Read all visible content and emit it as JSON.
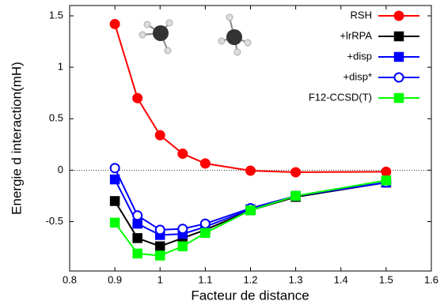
{
  "chart_data": {
    "type": "line",
    "x_label": "Facteur de distance",
    "y_label": "Energie d interaction(mH)",
    "xlim": [
      0.8,
      1.6
    ],
    "xticks": [
      0.8,
      0.9,
      1,
      1.1,
      1.2,
      1.3,
      1.4,
      1.5,
      1.6
    ],
    "ylim": [
      -0.98,
      1.6
    ],
    "yticks": [
      -0.5,
      0,
      0.5,
      1,
      1.5
    ],
    "zero_line": true,
    "legend": "top-right",
    "series": [
      {
        "name": "RSH",
        "color": "#ff0000",
        "marker": "circle",
        "filled": true,
        "x": [
          0.9,
          0.95,
          1.0,
          1.05,
          1.1,
          1.2,
          1.3,
          1.5
        ],
        "values": [
          1.42,
          0.7,
          0.34,
          0.16,
          0.065,
          -0.005,
          -0.02,
          -0.015
        ]
      },
      {
        "name": "+lrRPA",
        "color": "#000000",
        "marker": "square",
        "filled": true,
        "x": [
          0.9,
          0.95,
          1.0,
          1.05,
          1.1,
          1.2,
          1.3,
          1.5
        ],
        "values": [
          -0.3,
          -0.66,
          -0.74,
          -0.66,
          -0.58,
          -0.39,
          -0.26,
          -0.12
        ]
      },
      {
        "name": "+disp",
        "color": "#0000ff",
        "marker": "square",
        "filled": true,
        "x": [
          0.9,
          0.95,
          1.0,
          1.05,
          1.1,
          1.2,
          1.3,
          1.5
        ],
        "values": [
          -0.09,
          -0.52,
          -0.63,
          -0.62,
          -0.55,
          -0.38,
          -0.25,
          -0.12
        ]
      },
      {
        "name": "+disp*",
        "color": "#0000ff",
        "marker": "circle",
        "filled": false,
        "x": [
          0.9,
          0.95,
          1.0,
          1.05,
          1.1,
          1.2,
          1.3,
          1.5
        ],
        "values": [
          0.02,
          -0.44,
          -0.58,
          -0.57,
          -0.52,
          -0.37,
          -0.25,
          -0.12
        ]
      },
      {
        "name": "F12-CCSD(T)",
        "color": "#00ff00",
        "marker": "square",
        "filled": true,
        "x": [
          0.9,
          0.95,
          1.0,
          1.05,
          1.1,
          1.2,
          1.3,
          1.5
        ],
        "values": [
          -0.51,
          -0.81,
          -0.83,
          -0.74,
          -0.61,
          -0.39,
          -0.25,
          -0.1
        ]
      }
    ]
  }
}
